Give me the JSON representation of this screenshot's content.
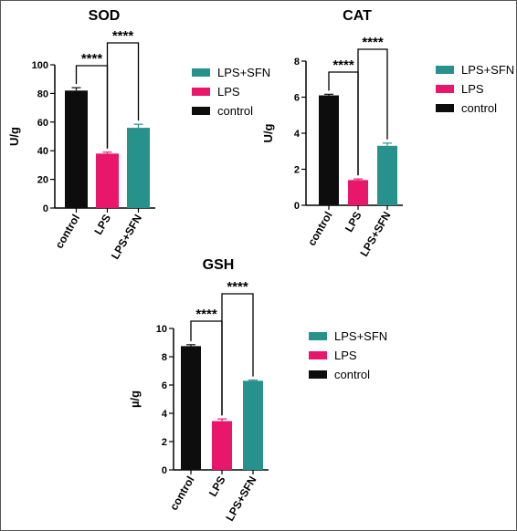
{
  "colors": {
    "control": "#0d0d0d",
    "LPS": "#e8176b",
    "LPS+SFN": "#27918c"
  },
  "chart_data": [
    {
      "type": "bar",
      "title": "SOD",
      "ylabel": "U/g",
      "xlabel": "",
      "categories": [
        "control",
        "LPS",
        "LPS+SFN"
      ],
      "values": [
        82,
        38,
        56
      ],
      "errors": [
        2,
        1,
        2.5
      ],
      "ylim": [
        0,
        100
      ],
      "yticks": [
        0,
        20,
        40,
        60,
        80,
        100
      ],
      "legend": {
        "placement": "right",
        "entries": [
          "LPS+SFN",
          "LPS",
          "control"
        ]
      },
      "significance": [
        {
          "from": "control",
          "to": "LPS",
          "label": "****"
        },
        {
          "from": "LPS",
          "to": "LPS+SFN",
          "label": "****"
        }
      ],
      "grid": false
    },
    {
      "type": "bar",
      "title": "CAT",
      "ylabel": "U/g",
      "xlabel": "",
      "categories": [
        "control",
        "LPS",
        "LPS+SFN"
      ],
      "values": [
        6.1,
        1.4,
        3.3
      ],
      "errors": [
        0.06,
        0.06,
        0.15
      ],
      "ylim": [
        0,
        8
      ],
      "yticks": [
        0,
        2,
        4,
        6,
        8
      ],
      "legend": {
        "placement": "right",
        "entries": [
          "LPS+SFN",
          "LPS",
          "control"
        ]
      },
      "significance": [
        {
          "from": "control",
          "to": "LPS",
          "label": "****"
        },
        {
          "from": "LPS",
          "to": "LPS+SFN",
          "label": "****"
        }
      ],
      "grid": false
    },
    {
      "type": "bar",
      "title": "GSH",
      "ylabel": "µ/g",
      "xlabel": "",
      "categories": [
        "control",
        "LPS",
        "LPS+SFN"
      ],
      "values": [
        8.75,
        3.45,
        6.3
      ],
      "errors": [
        0.1,
        0.15,
        0.05
      ],
      "ylim": [
        0,
        10
      ],
      "yticks": [
        0,
        2,
        4,
        6,
        8,
        10
      ],
      "legend": {
        "placement": "right",
        "entries": [
          "LPS+SFN",
          "LPS",
          "control"
        ]
      },
      "significance": [
        {
          "from": "control",
          "to": "LPS",
          "label": "****"
        },
        {
          "from": "LPS",
          "to": "LPS+SFN",
          "label": "****"
        }
      ],
      "grid": false
    }
  ]
}
